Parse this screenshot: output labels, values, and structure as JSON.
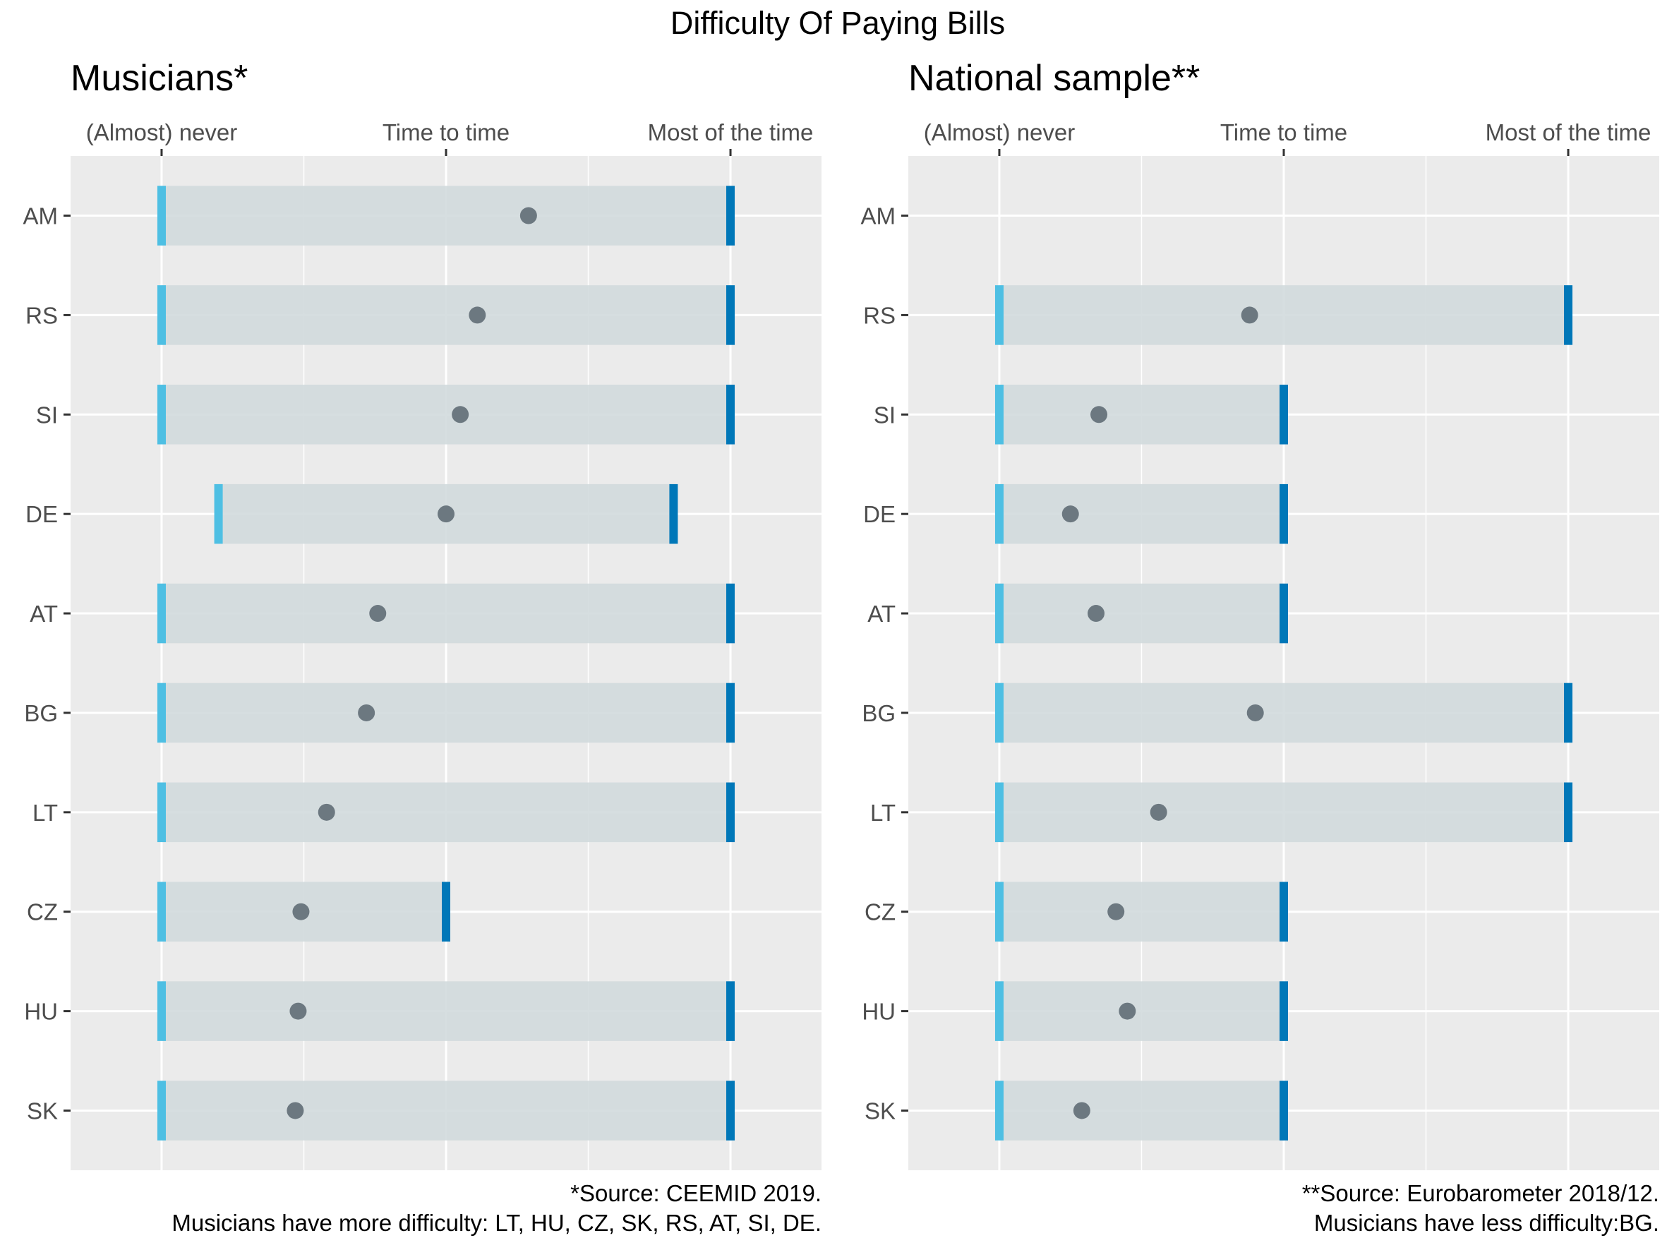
{
  "title": "Difficulty Of Paying Bills",
  "colors": {
    "panel_bg": "#ebebeb",
    "grid": "#ffffff",
    "band": "#d2dadd",
    "low_end": "#4ebfe3",
    "high_end": "#0077b8",
    "point": "#6c7880"
  },
  "chart_data": [
    {
      "type": "dumbbell-range",
      "title": "Musicians*",
      "x_ticks": [
        "(Almost) never",
        "Time to time",
        "Most of the time"
      ],
      "x_tick_values": [
        0,
        1,
        2
      ],
      "xlim": [
        -0.32,
        2.32
      ],
      "x_axis_position": "top",
      "grid": true,
      "categories": [
        "AM",
        "RS",
        "SI",
        "DE",
        "AT",
        "BG",
        "LT",
        "CZ",
        "HU",
        "SK"
      ],
      "mean": [
        1.29,
        1.11,
        1.05,
        1.0,
        0.76,
        0.72,
        0.58,
        0.49,
        0.48,
        0.47
      ],
      "low": [
        0,
        0,
        0,
        0.2,
        0,
        0,
        0,
        0,
        0,
        0
      ],
      "high": [
        2,
        2,
        2,
        1.8,
        2,
        2,
        2,
        1,
        2,
        2
      ],
      "caption": [
        "*Source: CEEMID 2019.",
        "Musicians have more difficulty: LT, HU, CZ, SK, RS, AT, SI, DE."
      ]
    },
    {
      "type": "dumbbell-range",
      "title": "National sample**",
      "x_ticks": [
        "(Almost) never",
        "Time to time",
        "Most of the time"
      ],
      "x_tick_values": [
        0,
        1,
        2
      ],
      "xlim": [
        -0.32,
        2.32
      ],
      "x_axis_position": "top",
      "grid": true,
      "categories": [
        "AM",
        "RS",
        "SI",
        "DE",
        "AT",
        "BG",
        "LT",
        "CZ",
        "HU",
        "SK"
      ],
      "mean": [
        null,
        0.88,
        0.35,
        0.25,
        0.34,
        0.9,
        0.56,
        0.41,
        0.45,
        0.29
      ],
      "low": [
        null,
        0,
        0,
        0,
        0,
        0,
        0,
        0,
        0,
        0
      ],
      "high": [
        null,
        2,
        1,
        1,
        1,
        2,
        2,
        1,
        1,
        1
      ],
      "caption": [
        "**Source: Eurobarometer 2018/12.",
        "Musicians have less difficulty:BG."
      ]
    }
  ]
}
